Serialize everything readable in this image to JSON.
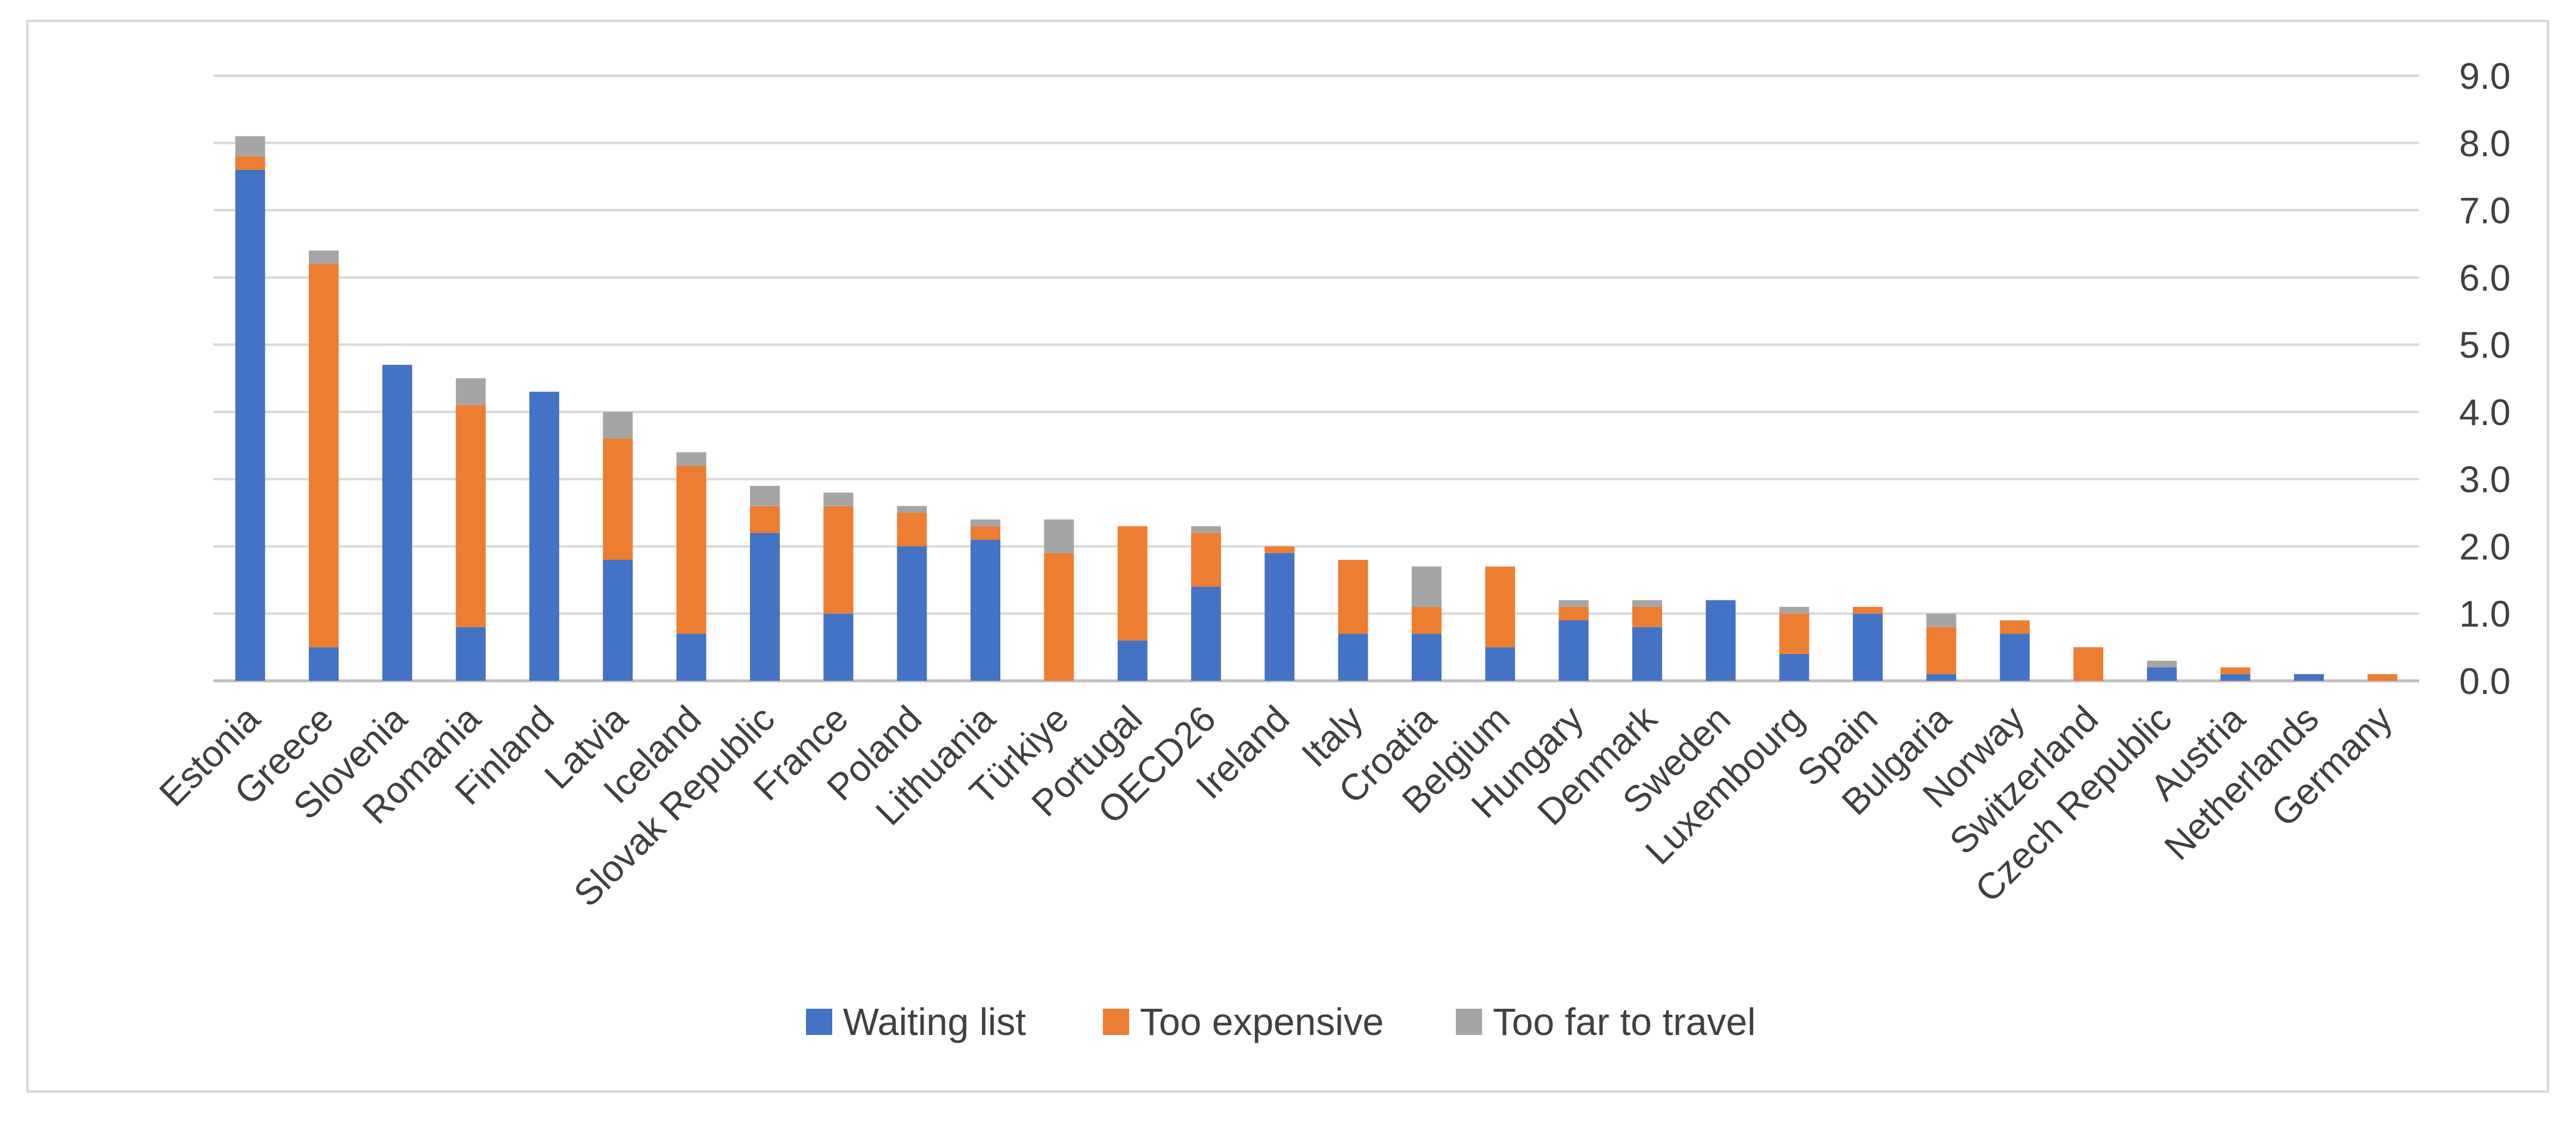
{
  "chart_data": {
    "type": "bar",
    "stacked": true,
    "categories": [
      "Estonia",
      "Greece",
      "Slovenia",
      "Romania",
      "Finland",
      "Latvia",
      "Iceland",
      "Slovak Republic",
      "France",
      "Poland",
      "Lithuania",
      "Türkiye",
      "Portugal",
      "OECD26",
      "Ireland",
      "Italy",
      "Croatia",
      "Belgium",
      "Hungary",
      "Denmark",
      "Sweden",
      "Luxembourg",
      "Spain",
      "Bulgaria",
      "Norway",
      "Switzerland",
      "Czech Republic",
      "Austria",
      "Netherlands",
      "Germany"
    ],
    "series": [
      {
        "name": "Waiting list",
        "color": "#4472c4",
        "values": [
          7.6,
          0.5,
          4.7,
          0.8,
          4.3,
          1.8,
          0.7,
          2.2,
          1.0,
          2.0,
          2.1,
          0.0,
          0.6,
          1.4,
          1.9,
          0.7,
          0.7,
          0.5,
          0.9,
          0.8,
          1.2,
          0.4,
          1.0,
          0.1,
          0.7,
          0.0,
          0.2,
          0.1,
          0.1,
          0.0
        ]
      },
      {
        "name": "Too expensive",
        "color": "#ed7d31",
        "values": [
          0.2,
          5.7,
          0.0,
          3.3,
          0.0,
          1.8,
          2.5,
          0.4,
          1.6,
          0.5,
          0.2,
          1.9,
          1.7,
          0.8,
          0.1,
          1.1,
          0.4,
          1.2,
          0.2,
          0.3,
          0.0,
          0.6,
          0.1,
          0.7,
          0.2,
          0.5,
          0.0,
          0.1,
          0.0,
          0.1
        ]
      },
      {
        "name": "Too far to travel",
        "color": "#a5a5a5",
        "values": [
          0.3,
          0.2,
          0.0,
          0.4,
          0.0,
          0.4,
          0.2,
          0.3,
          0.2,
          0.1,
          0.1,
          0.5,
          0.0,
          0.1,
          0.0,
          0.0,
          0.6,
          0.0,
          0.1,
          0.1,
          0.0,
          0.1,
          0.0,
          0.2,
          0.0,
          0.0,
          0.1,
          0.0,
          0.0,
          0.0
        ]
      }
    ],
    "yticks": [
      "0.0",
      "1.0",
      "2.0",
      "3.0",
      "4.0",
      "5.0",
      "6.0",
      "7.0",
      "8.0",
      "9.0"
    ],
    "ylim": [
      0,
      9
    ],
    "y_axis_side": "right",
    "grid": true,
    "legend_position": "bottom",
    "title": "",
    "xlabel": "",
    "ylabel": ""
  }
}
